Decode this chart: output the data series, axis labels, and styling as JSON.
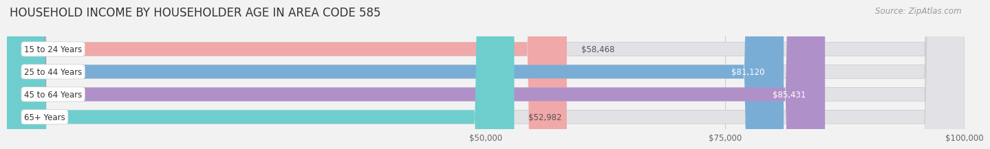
{
  "title": "HOUSEHOLD INCOME BY HOUSEHOLDER AGE IN AREA CODE 585",
  "source": "Source: ZipAtlas.com",
  "categories": [
    "15 to 24 Years",
    "25 to 44 Years",
    "45 to 64 Years",
    "65+ Years"
  ],
  "values": [
    58468,
    81120,
    85431,
    52982
  ],
  "bar_colors": [
    "#f0a8a8",
    "#7aadd6",
    "#b090c8",
    "#6ecece"
  ],
  "label_inside": [
    false,
    true,
    true,
    false
  ],
  "label_text_colors_inside": [
    "#555555",
    "#ffffff",
    "#ffffff",
    "#555555"
  ],
  "bg_color": "#f2f2f2",
  "bar_bg_color": "#e2e2e6",
  "bar_border_color": "#cccccc",
  "xmin": 0,
  "xmax": 100000,
  "xticks": [
    50000,
    75000,
    100000
  ],
  "xtick_labels": [
    "$50,000",
    "$75,000",
    "$100,000"
  ],
  "value_labels": [
    "$58,468",
    "$81,120",
    "$85,431",
    "$52,982"
  ],
  "title_fontsize": 12,
  "source_fontsize": 8.5,
  "bar_label_fontsize": 8.5,
  "tick_fontsize": 8.5,
  "cat_fontsize": 8.5
}
